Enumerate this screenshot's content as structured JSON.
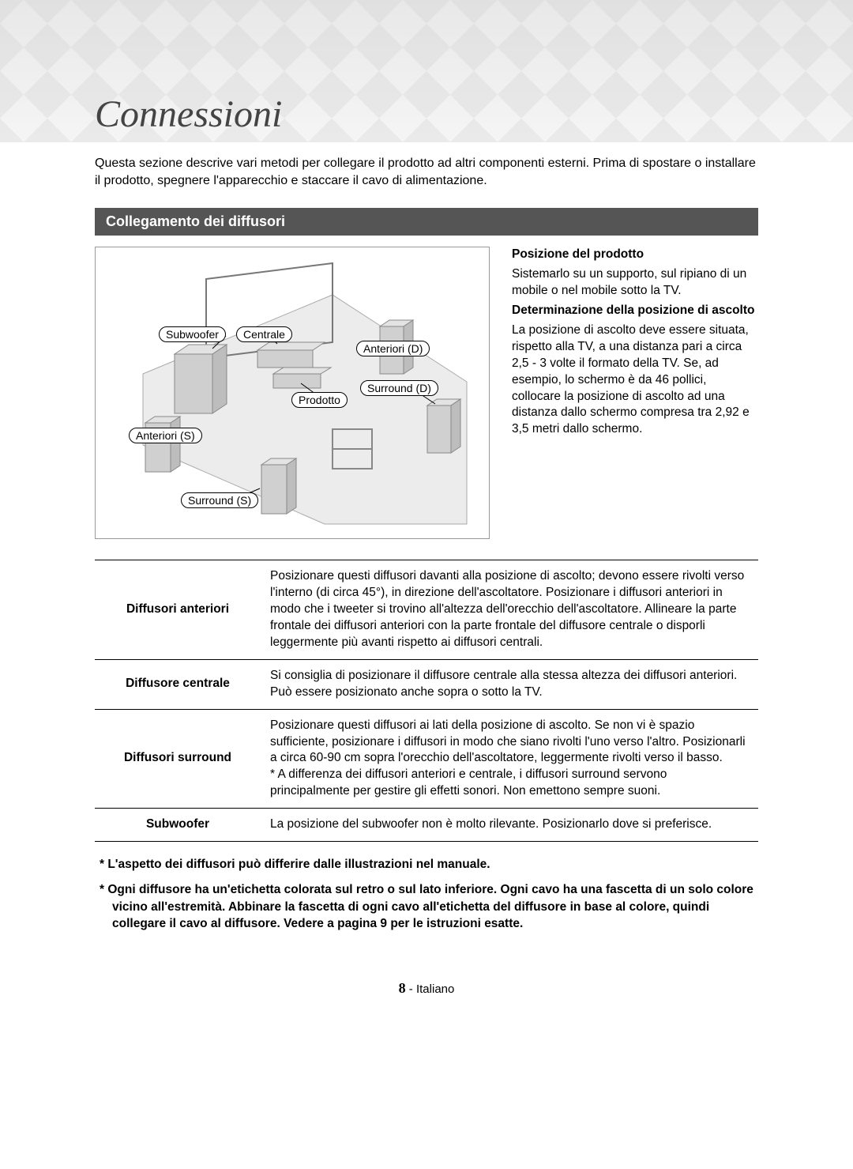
{
  "page": {
    "title": "Connessioni",
    "intro": "Questa sezione descrive vari metodi per collegare il prodotto ad altri componenti esterni. Prima di spostare o installare il prodotto, spegnere l'apparecchio e staccare il cavo di alimentazione.",
    "section_bar": "Collegamento dei diffusori",
    "footer_number": "8",
    "footer_lang": " - Italiano"
  },
  "diagram": {
    "labels": {
      "subwoofer": "Subwoofer",
      "centrale": "Centrale",
      "anteriori_d": "Anteriori (D)",
      "surround_d": "Surround (D)",
      "prodotto": "Prodotto",
      "anteriori_s": "Anteriori (S)",
      "surround_s": "Surround (S)"
    },
    "styling": {
      "border_color": "#999999",
      "pill_border": "#000000",
      "pill_bg": "#ffffff",
      "floor_fill": "#e9e9e9",
      "speaker_fill": "#d0d0d0"
    }
  },
  "side": {
    "h1": "Posizione del prodotto",
    "p1": "Sistemarlo su un supporto, sul ripiano di un mobile o nel mobile sotto la TV.",
    "h2": "Determinazione della posizione di ascolto",
    "p2": "La posizione di ascolto deve essere situata, rispetto alla TV, a una distanza pari a circa 2,5 - 3 volte il formato della TV. Se, ad esempio, lo schermo è da 46 pollici, collocare la posizione di ascolto ad una distanza dallo schermo compresa tra 2,92 e 3,5 metri dallo schermo."
  },
  "table": {
    "rows": [
      {
        "label": "Diffusori anteriori",
        "text": "Posizionare questi diffusori davanti alla posizione di ascolto; devono essere rivolti verso l'interno (di circa 45°), in direzione dell'ascoltatore. Posizionare i diffusori anteriori in modo che i tweeter si trovino all'altezza dell'orecchio dell'ascoltatore. Allineare la parte frontale dei diffusori anteriori con la parte frontale del diffusore centrale o disporli leggermente più avanti rispetto ai diffusori centrali."
      },
      {
        "label": "Diffusore centrale",
        "text": "Si consiglia di posizionare il diffusore centrale alla stessa altezza dei diffusori anteriori. Può essere posizionato anche sopra o sotto la TV."
      },
      {
        "label": "Diffusori surround",
        "text": "Posizionare questi diffusori ai lati della posizione di ascolto. Se non vi è spazio sufficiente, posizionare i diffusori in modo che siano rivolti l'uno verso l'altro. Posizionarli a circa 60-90 cm sopra l'orecchio dell'ascoltatore, leggermente rivolti verso il basso.\n* A differenza dei diffusori anteriori e centrale, i diffusori surround servono principalmente per gestire gli effetti sonori. Non emettono sempre suoni."
      },
      {
        "label": "Subwoofer",
        "text": "La posizione del subwoofer non è molto rilevante. Posizionarlo dove si preferisce."
      }
    ]
  },
  "notes": {
    "n1": "* L'aspetto dei diffusori può differire dalle illustrazioni nel manuale.",
    "n2": "* Ogni diffusore ha un'etichetta colorata sul retro o sul lato inferiore. Ogni cavo ha una fascetta di un solo colore vicino all'estremità. Abbinare la fascetta di ogni cavo all'etichetta del diffusore in base al colore, quindi collegare il cavo al diffusore. Vedere a pagina 9 per le istruzioni esatte."
  }
}
